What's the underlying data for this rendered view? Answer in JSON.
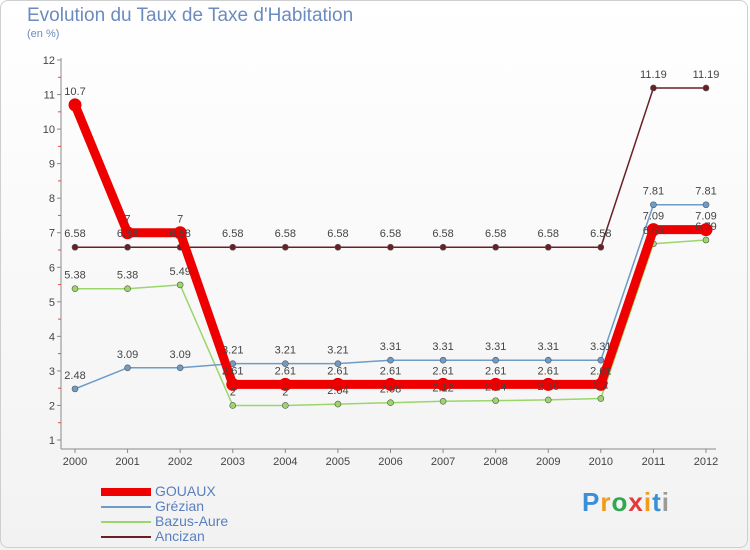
{
  "header": {
    "title": "Evolution du Taux de Taxe d'Habitation",
    "subtitle": "(en %)"
  },
  "brand": {
    "name": "Proxiti"
  },
  "chart_data": {
    "type": "line",
    "title": "Evolution du Taux de Taxe d'Habitation",
    "subtitle": "(en %)",
    "x": [
      "2000",
      "2001",
      "2002",
      "2003",
      "2004",
      "2005",
      "2006",
      "2007",
      "2008",
      "2009",
      "2010",
      "2011",
      "2012"
    ],
    "ylim": [
      1,
      12
    ],
    "yticks": [
      1,
      2,
      3,
      4,
      5,
      6,
      7,
      8,
      9,
      10,
      11,
      12
    ],
    "grid": false,
    "legend_position": "bottom-left",
    "series": [
      {
        "name": "Ancizan",
        "color": "#6b1f24",
        "values": [
          6.58,
          6.58,
          6.58,
          6.58,
          6.58,
          6.58,
          6.58,
          6.58,
          6.58,
          6.58,
          6.58,
          11.19,
          11.19
        ],
        "labels": [
          "6.58",
          "6.58",
          "6.58",
          "6.58",
          "6.58",
          "6.58",
          "6.58",
          "6.58",
          "6.58",
          "6.58",
          "6.58",
          "11.19",
          "11.19"
        ]
      },
      {
        "name": "Bazus-Aure",
        "color": "#9ad66a",
        "values": [
          5.38,
          5.38,
          5.49,
          2,
          2,
          2.04,
          2.08,
          2.12,
          2.14,
          2.16,
          2.2,
          6.68,
          6.79
        ],
        "labels": [
          "5.38",
          "5.38",
          "5.49",
          "2",
          "2",
          "2.04",
          "2.08",
          "2.12",
          "2.14",
          "2.16",
          "2.2",
          "6.68",
          "6.79"
        ]
      },
      {
        "name": "Grézian",
        "color": "#6c9cc7",
        "values": [
          2.48,
          3.09,
          3.09,
          3.21,
          3.21,
          3.21,
          3.31,
          3.31,
          3.31,
          3.31,
          3.31,
          7.81,
          7.81
        ],
        "labels": [
          "2.48",
          "3.09",
          "3.09",
          "3.21",
          "3.21",
          "3.21",
          "3.31",
          "3.31",
          "3.31",
          "3.31",
          "3.31",
          "7.81",
          "7.81"
        ]
      },
      {
        "name": "GOUAUX",
        "color": "#ee0000",
        "values": [
          10.7,
          7,
          7,
          2.61,
          2.61,
          2.61,
          2.61,
          2.61,
          2.61,
          2.61,
          2.61,
          7.09,
          7.09
        ],
        "labels": [
          "10.7",
          "7",
          "7",
          "2.61",
          "2.61",
          "2.61",
          "2.61",
          "2.61",
          "2.61",
          "2.61",
          "2.61",
          "7.09",
          "7.09"
        ]
      }
    ]
  },
  "legend": {
    "items": [
      {
        "label": "GOUAUX",
        "color": "#ee0000",
        "thick": true
      },
      {
        "label": "Grézian",
        "color": "#6c9cc7",
        "thick": false
      },
      {
        "label": "Bazus-Aure",
        "color": "#9ad66a",
        "thick": false
      },
      {
        "label": "Ancizan",
        "color": "#6b1f24",
        "thick": false
      }
    ]
  }
}
